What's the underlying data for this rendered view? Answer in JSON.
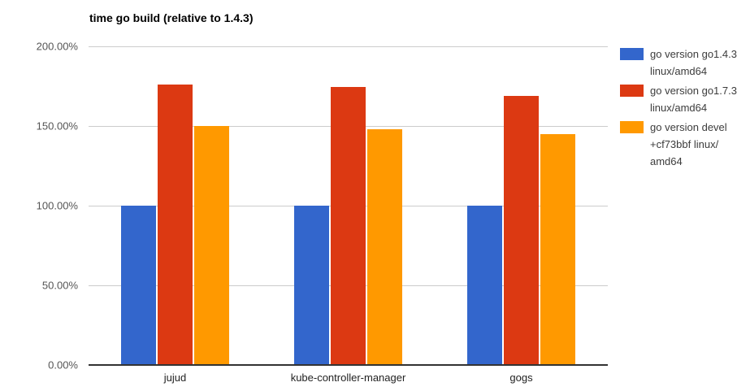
{
  "chart_data": {
    "type": "bar",
    "title": "time go build (relative to 1.4.3)",
    "categories": [
      "jujud",
      "kube-controller-manager",
      "gogs"
    ],
    "series": [
      {
        "name": "go version go1.4.3 linux/amd64",
        "color": "#3366cc",
        "values": [
          100,
          100,
          100
        ]
      },
      {
        "name": "go version go1.7.3 linux/amd64",
        "color": "#dc3912",
        "values": [
          176,
          174.5,
          169
        ]
      },
      {
        "name": "go version devel +cf73bbf linux/amd64",
        "color": "#ff9900",
        "values": [
          150,
          148,
          145
        ]
      }
    ],
    "xlabel": "",
    "ylabel": "",
    "ylim": [
      0,
      200
    ],
    "yticks": [
      {
        "value": 0,
        "label": "0.00%"
      },
      {
        "value": 50,
        "label": "50.00%"
      },
      {
        "value": 100,
        "label": "100.00%"
      },
      {
        "value": 150,
        "label": "150.00%"
      },
      {
        "value": 200,
        "label": "200.00%"
      }
    ],
    "grid": true,
    "legend_position": "right"
  },
  "legend": {
    "entries": [
      {
        "swatch_color": "#3366cc",
        "lines": [
          "go version go1.4.3",
          "linux/amd64"
        ]
      },
      {
        "swatch_color": "#dc3912",
        "lines": [
          "go version go1.7.3",
          "linux/amd64"
        ]
      },
      {
        "swatch_color": "#ff9900",
        "lines": [
          "go version devel",
          "+cf73bbf linux/",
          "amd64"
        ]
      }
    ]
  },
  "colors": {
    "background": "#ffffff",
    "gridline": "#cccccc",
    "axis_line": "#333333",
    "y_axis_text": "#555555",
    "x_axis_text": "#222222",
    "legend_text": "#3c3c3c",
    "title_text": "#000000"
  }
}
